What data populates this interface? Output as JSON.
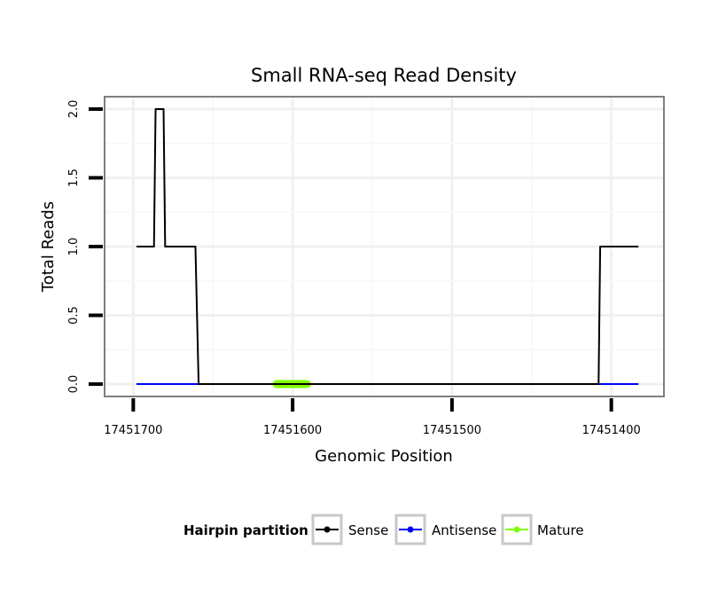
{
  "chart_data": {
    "type": "line",
    "title": "Small RNA-seq Read Density",
    "xlabel": "Genomic Position",
    "ylabel": "Total Reads",
    "xlim": [
      17451718,
      17451367
    ],
    "ylim": [
      -0.09,
      2.09
    ],
    "x_reversed": true,
    "x_ticks": [
      17451700,
      17451600,
      17451500,
      17451400
    ],
    "x_tick_labels": [
      "17451700",
      "17451600",
      "17451500",
      "17451400"
    ],
    "y_ticks": [
      0.0,
      0.5,
      1.0,
      1.5,
      2.0
    ],
    "y_tick_labels": [
      "0.0",
      "0.5",
      "1.0",
      "1.5",
      "2.0"
    ],
    "grid": true,
    "legend_position": "bottom",
    "legend": {
      "title": "Hairpin partition",
      "entries": [
        {
          "name": "Sense",
          "color": "#000000"
        },
        {
          "name": "Antisense",
          "color": "#0000ff"
        },
        {
          "name": "Mature",
          "color": "#7fff00"
        }
      ]
    },
    "series": [
      {
        "name": "Sense",
        "color": "#000000",
        "x": [
          17451698,
          17451687,
          17451686,
          17451681,
          17451680,
          17451661,
          17451659,
          17451408,
          17451407,
          17451383
        ],
        "y": [
          1,
          1,
          2,
          2,
          1,
          1,
          0,
          0,
          1,
          1
        ]
      },
      {
        "name": "Antisense",
        "color": "#0000ff",
        "x": [
          17451698,
          17451383
        ],
        "y": [
          0,
          0
        ]
      },
      {
        "name": "Mature",
        "color": "#7fff00",
        "x": [
          17451610,
          17451591
        ],
        "y": [
          0,
          0
        ]
      }
    ]
  }
}
